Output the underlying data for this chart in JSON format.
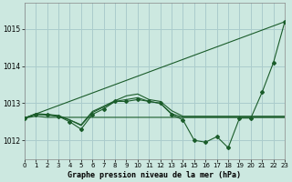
{
  "bg_color": "#cce8e0",
  "grid_color": "#aacccc",
  "line_color": "#1a5c2a",
  "title": "Graphe pression niveau de la mer (hPa)",
  "xlim": [
    0,
    23
  ],
  "ylim": [
    1011.5,
    1015.7
  ],
  "yticks": [
    1012,
    1013,
    1014,
    1015
  ],
  "xticks": [
    0,
    1,
    2,
    3,
    4,
    5,
    6,
    7,
    8,
    9,
    10,
    11,
    12,
    13,
    14,
    15,
    16,
    17,
    18,
    19,
    20,
    21,
    22,
    23
  ],
  "series": [
    {
      "x": [
        0,
        1,
        2,
        3,
        4,
        5,
        6,
        7,
        8,
        9,
        10,
        11,
        12,
        13,
        14,
        15,
        16,
        17,
        18,
        19,
        20,
        21,
        22,
        23
      ],
      "y": [
        1012.6,
        1012.7,
        1012.7,
        1012.65,
        1012.5,
        1012.3,
        1012.7,
        1012.85,
        1013.05,
        1013.05,
        1013.1,
        1013.05,
        1013.0,
        1012.7,
        1012.55,
        1012.0,
        1011.95,
        1012.1,
        1011.8,
        1012.6,
        1012.6,
        1013.3,
        1014.1,
        1015.2
      ],
      "marker": "D",
      "markersize": 2.0
    },
    {
      "x": [
        0,
        1,
        2,
        3,
        4,
        5,
        6,
        7,
        8,
        9,
        10,
        11,
        12,
        13,
        14,
        15,
        16,
        17,
        18,
        19,
        20,
        21,
        22,
        23
      ],
      "y": [
        1012.6,
        1012.65,
        1012.62,
        1012.62,
        1012.62,
        1012.62,
        1012.62,
        1012.62,
        1012.62,
        1012.62,
        1012.62,
        1012.62,
        1012.62,
        1012.62,
        1012.62,
        1012.62,
        1012.62,
        1012.62,
        1012.62,
        1012.62,
        1012.62,
        1012.62,
        1012.62,
        1012.62
      ],
      "marker": null,
      "markersize": 0
    },
    {
      "x": [
        0,
        23
      ],
      "y": [
        1012.6,
        1015.2
      ],
      "marker": null,
      "markersize": 0
    },
    {
      "x": [
        0,
        1,
        2,
        3,
        4,
        5,
        6,
        7,
        8,
        9,
        10,
        11,
        12,
        13,
        14,
        15,
        16,
        17,
        18,
        19,
        20,
        21,
        22,
        23
      ],
      "y": [
        1012.6,
        1012.7,
        1012.68,
        1012.65,
        1012.55,
        1012.4,
        1012.75,
        1012.9,
        1013.05,
        1013.1,
        1013.15,
        1013.05,
        1013.0,
        1012.72,
        1012.62,
        1012.62,
        1012.62,
        1012.62,
        1012.62,
        1012.62,
        1012.62,
        1012.62,
        1012.62,
        1012.62
      ],
      "marker": null,
      "markersize": 0
    },
    {
      "x": [
        0,
        1,
        2,
        3,
        4,
        5,
        6,
        7,
        8,
        9,
        10,
        11,
        12,
        13,
        14,
        15,
        16,
        17,
        18,
        19,
        20,
        21,
        22,
        23
      ],
      "y": [
        1012.6,
        1012.72,
        1012.7,
        1012.67,
        1012.55,
        1012.42,
        1012.78,
        1012.92,
        1013.07,
        1013.2,
        1013.25,
        1013.1,
        1013.05,
        1012.8,
        1012.65,
        1012.65,
        1012.65,
        1012.65,
        1012.65,
        1012.65,
        1012.65,
        1012.65,
        1012.65,
        1012.65
      ],
      "marker": null,
      "markersize": 0
    }
  ]
}
